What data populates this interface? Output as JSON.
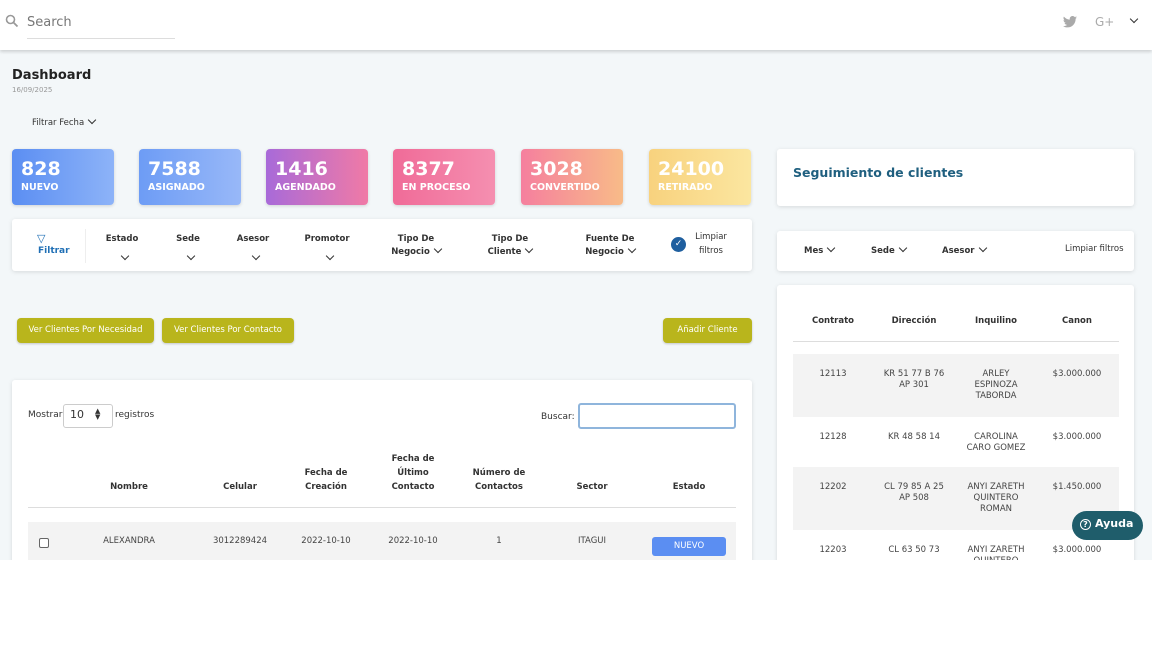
{
  "search": {
    "placeholder": "Search"
  },
  "header": {
    "social": "G+"
  },
  "dashboard": {
    "title": "Dashboard",
    "date": "16/09/2025",
    "filter": "Filtrar Fecha"
  },
  "stats": [
    {
      "value": "828",
      "label": "NUEVO"
    },
    {
      "value": "7588",
      "label": "ASIGNADO"
    },
    {
      "value": "1416",
      "label": "AGENDADO"
    },
    {
      "value": "8377",
      "label": "EN PROCESO"
    },
    {
      "value": "3028",
      "label": "CONVERTIDO"
    },
    {
      "value": "24100",
      "label": "RETIRADO"
    }
  ],
  "filters": {
    "title": "Filtrar",
    "items": [
      "Estado",
      "Sede",
      "Asesor",
      "Promotor",
      "Tipo De Negocio",
      "Tipo De Cliente",
      "Fuente De Negocio"
    ],
    "clear": "Limpiar filtros"
  },
  "buttons": [
    "Ver Clientes Por Necesidad",
    "Ver Clientes Por Contacto",
    "Añadir Cliente"
  ],
  "table": {
    "show": "Mostrar",
    "page_size": "10",
    "records": "registros",
    "search": "Buscar:",
    "columns": [
      "Nombre",
      "Celular",
      "Fecha de Creación",
      "Fecha de Último Contacto",
      "Número de Contactos",
      "Sector",
      "Estado"
    ],
    "rows": [
      [
        "ALEXANDRA",
        "3012289424",
        "2022-10-10",
        "2022-10-10",
        "1",
        "ITAGUI",
        "NUEVO"
      ]
    ]
  },
  "tracking": {
    "title": "Seguimiento de clientes",
    "filters": [
      "Mes",
      "Sede",
      "Asesor"
    ],
    "clear": "Limpiar filtros",
    "columns": [
      "Contrato",
      "Dirección",
      "Inquilino",
      "Canon"
    ],
    "rows": [
      [
        "12113",
        "KR 51 77 B 76 AP 301",
        "ARLEY ESPINOZA TABORDA",
        "$3.000.000"
      ],
      [
        "12128",
        "KR 48 58 14",
        "CAROLINA CARO GOMEZ",
        "$3.000.000"
      ],
      [
        "12202",
        "CL 79 85 A 25 AP 508",
        "ANYI ZARETH QUINTERO ROMAN",
        "$1.450.000"
      ],
      [
        "12203",
        "CL 63 50 73",
        "ANYI ZARETH QUINTERO",
        "$3.000.000"
      ]
    ]
  },
  "help": "Ayuda"
}
